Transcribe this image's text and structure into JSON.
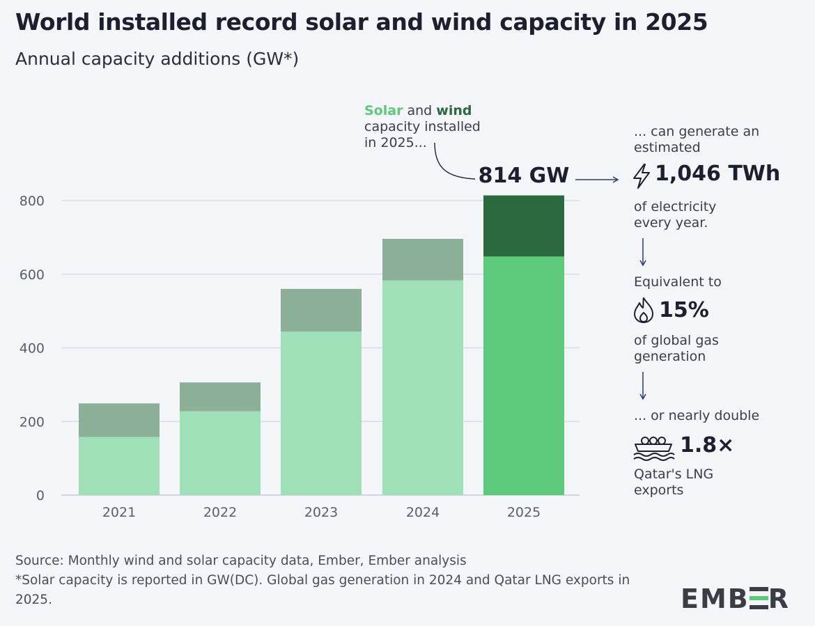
{
  "header": {
    "title": "World installed record solar and wind capacity in 2025",
    "subtitle": "Annual capacity additions (GW*)"
  },
  "chart_data": {
    "type": "bar",
    "stacked": true,
    "categories": [
      "2021",
      "2022",
      "2023",
      "2024",
      "2025"
    ],
    "series": [
      {
        "name": "Solar",
        "values": [
          158,
          228,
          444,
          583,
          648
        ]
      },
      {
        "name": "Wind",
        "values": [
          91,
          78,
          116,
          113,
          166
        ]
      }
    ],
    "totals": [
      249,
      306,
      560,
      696,
      814
    ],
    "ylim": [
      0,
      820
    ],
    "yticks": [
      0,
      200,
      400,
      600,
      800
    ],
    "grid": true,
    "colors": {
      "solar_past": "#9fe0b8",
      "wind_past": "#8caf97",
      "solar_highlight": "#5dc97b",
      "wind_highlight": "#2b6a3f",
      "grid": "#d5d8e2"
    }
  },
  "annotation": {
    "solar_word": "Solar",
    "and_word": "and",
    "wind_word": "wind",
    "line2": "capacity installed",
    "line3": "in 2025...",
    "total_label": "814 GW"
  },
  "stats": {
    "generate_line1": "... can generate an",
    "generate_line2": "estimated",
    "twh_value": "1,046 TWh",
    "electricity_line1": "of electricity",
    "electricity_line2": "every year.",
    "equivalent": "Equivalent to",
    "gas_value": "15%",
    "gas_line1": "of global gas",
    "gas_line2": "generation",
    "double": "... or nearly double",
    "lng_value": "1.8×",
    "lng_line1": "Qatar's LNG",
    "lng_line2": "exports"
  },
  "footer": {
    "source": "Source: Monthly wind and solar capacity data, Ember, Ember analysis",
    "note": "*Solar capacity is reported in GW(DC). Global gas generation in 2024 and Qatar LNG exports in 2025."
  },
  "logo": {
    "text_left": "EMB",
    "text_right": "R"
  }
}
